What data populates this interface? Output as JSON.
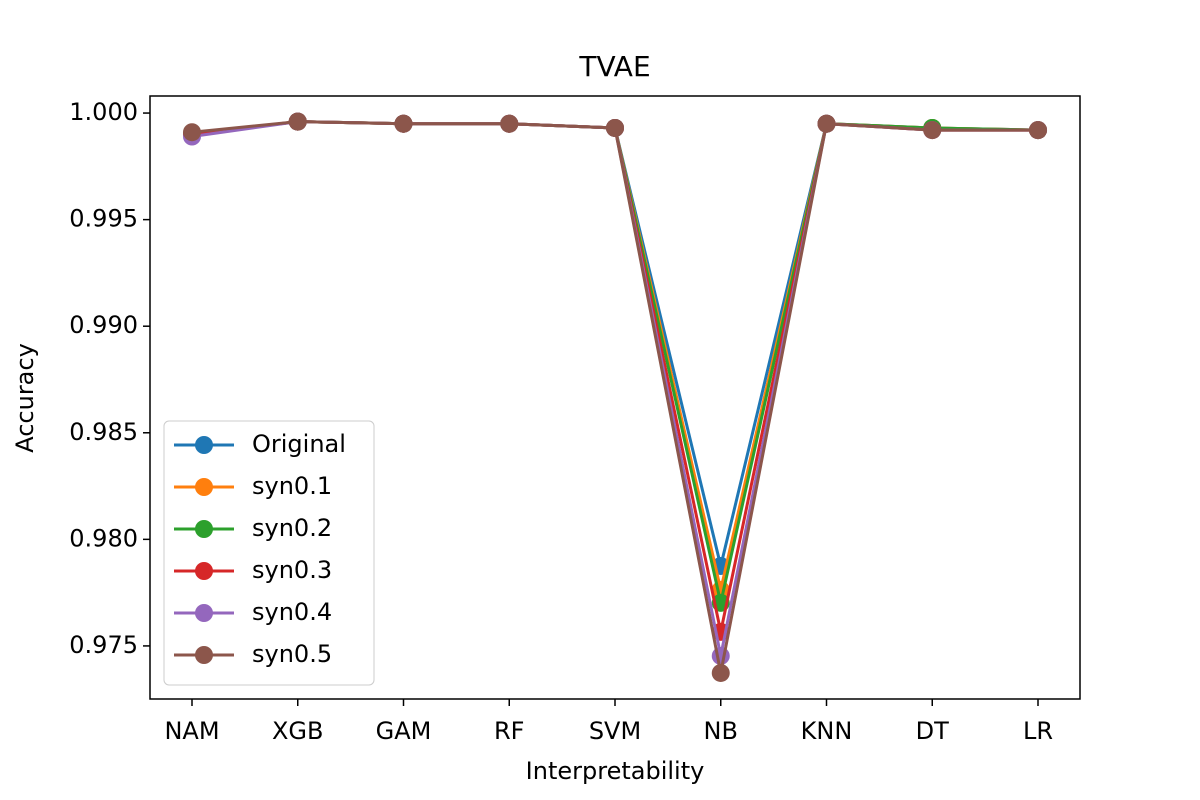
{
  "chart_data": {
    "type": "line",
    "title": "TVAE",
    "x_label": "Interpretability",
    "y_label": "Accuracy",
    "categories": [
      "NAM",
      "XGB",
      "GAM",
      "RF",
      "SVM",
      "NB",
      "KNN",
      "DT",
      "LR"
    ],
    "series": [
      {
        "name": "Original",
        "color": "#1f77b4",
        "values": [
          0.999,
          0.9996,
          0.9995,
          0.9995,
          0.9993,
          0.97875,
          0.9995,
          0.9993,
          0.9992
        ]
      },
      {
        "name": "syn0.1",
        "color": "#ff7f0e",
        "values": [
          0.999,
          0.9996,
          0.9995,
          0.9995,
          0.9993,
          0.97763,
          0.9995,
          0.9993,
          0.9992
        ]
      },
      {
        "name": "syn0.2",
        "color": "#2ca02c",
        "values": [
          0.999,
          0.9996,
          0.9995,
          0.9995,
          0.9993,
          0.97702,
          0.9995,
          0.9993,
          0.9992
        ]
      },
      {
        "name": "syn0.3",
        "color": "#d62728",
        "values": [
          0.999,
          0.9996,
          0.9995,
          0.9995,
          0.9993,
          0.97566,
          0.9995,
          0.9992,
          0.9992
        ]
      },
      {
        "name": "syn0.4",
        "color": "#9467bd",
        "values": [
          0.9989,
          0.9996,
          0.9995,
          0.9995,
          0.9993,
          0.97453,
          0.9995,
          0.9992,
          0.9992
        ]
      },
      {
        "name": "syn0.5",
        "color": "#8c564b",
        "values": [
          0.9991,
          0.9996,
          0.9995,
          0.9995,
          0.9993,
          0.97373,
          0.9995,
          0.9992,
          0.9992
        ]
      }
    ],
    "ylim": [
      0.97251,
      1.0008
    ],
    "yticks": [
      {
        "value": 0.975,
        "label": "0.975"
      },
      {
        "value": 0.98,
        "label": "0.980"
      },
      {
        "value": 0.985,
        "label": "0.985"
      },
      {
        "value": 0.99,
        "label": "0.990"
      },
      {
        "value": 0.995,
        "label": "0.995"
      },
      {
        "value": 1.0,
        "label": "1.000"
      }
    ],
    "legend": "lower left",
    "grid": false
  }
}
